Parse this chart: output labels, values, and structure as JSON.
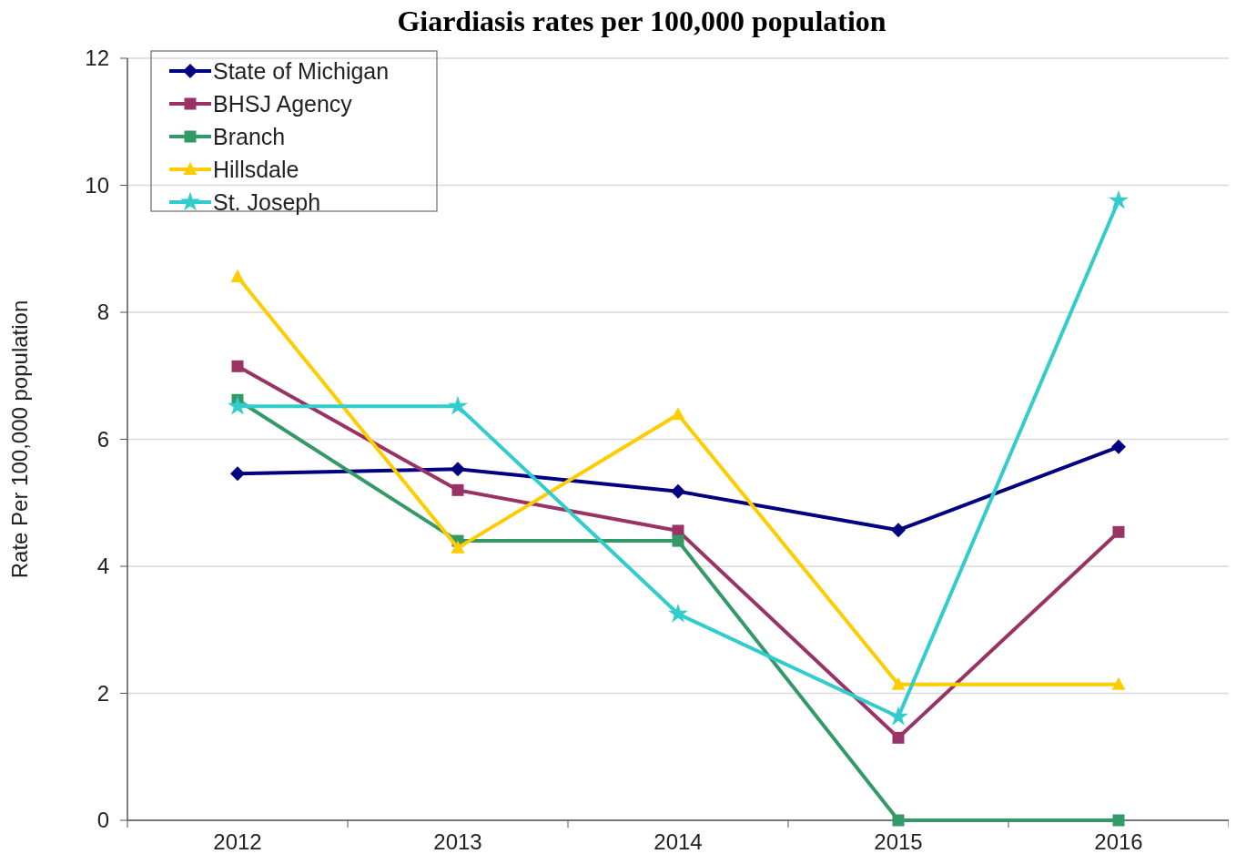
{
  "chart_data": {
    "type": "line",
    "title": "Giardiasis rates per 100,000 population",
    "ylabel": "Rate Per 100,000 population",
    "categories": [
      "2012",
      "2013",
      "2014",
      "2015",
      "2016"
    ],
    "ylim": [
      0,
      12
    ],
    "yticks": [
      0,
      2,
      4,
      6,
      8,
      10,
      12
    ],
    "grid": "y",
    "legend": "top left",
    "line_style": "solid",
    "series": [
      {
        "name": "State of Michigan",
        "color": "#000080",
        "marker": "diamond",
        "values": [
          5.46,
          5.53,
          5.18,
          4.57,
          5.88
        ]
      },
      {
        "name": "BHSJ Agency",
        "color": "#993366",
        "marker": "square",
        "values": [
          7.15,
          5.2,
          4.56,
          1.3,
          4.54
        ]
      },
      {
        "name": "Branch",
        "color": "#339966",
        "marker": "square",
        "values": [
          6.62,
          4.4,
          4.4,
          0,
          0
        ]
      },
      {
        "name": "Hillsdale",
        "color": "#ffcc00",
        "marker": "triangle",
        "values": [
          8.56,
          4.29,
          6.39,
          2.14,
          2.14
        ]
      },
      {
        "name": "St. Joseph",
        "color": "#33cccc",
        "marker": "star",
        "values": [
          6.52,
          6.52,
          3.25,
          1.63,
          9.76
        ]
      }
    ]
  }
}
